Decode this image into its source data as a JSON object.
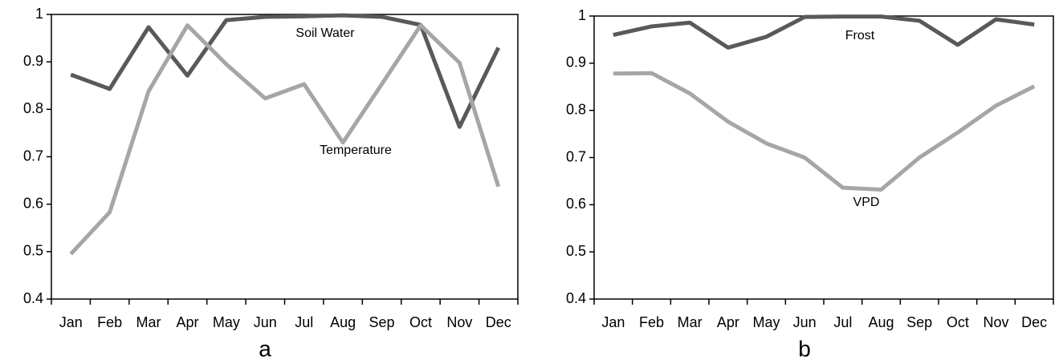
{
  "chart_data": [
    {
      "type": "line",
      "title": "a",
      "categories": [
        "Jan",
        "Feb",
        "Mar",
        "Apr",
        "May",
        "Jun",
        "Jul",
        "Aug",
        "Sep",
        "Oct",
        "Nov",
        "Dec"
      ],
      "series": [
        {
          "name": "Soil Water",
          "color": "#595959",
          "values": [
            0.873,
            0.843,
            0.973,
            0.871,
            0.988,
            0.995,
            0.996,
            0.998,
            0.995,
            0.978,
            0.763,
            0.93
          ]
        },
        {
          "name": "Temperature",
          "color": "#a6a6a6",
          "values": [
            0.495,
            0.583,
            0.838,
            0.977,
            0.895,
            0.823,
            0.853,
            0.73,
            0.853,
            0.977,
            0.898,
            0.637
          ]
        }
      ],
      "ylim": [
        0.4,
        1
      ],
      "yticks": [
        0.4,
        0.5,
        0.6,
        0.7,
        0.8,
        0.9,
        1
      ],
      "grid": false
    },
    {
      "type": "line",
      "title": "b",
      "categories": [
        "Jan",
        "Feb",
        "Mar",
        "Apr",
        "May",
        "Jun",
        "Jul",
        "Aug",
        "Sep",
        "Oct",
        "Nov",
        "Dec"
      ],
      "series": [
        {
          "name": "Frost",
          "color": "#595959",
          "values": [
            0.96,
            0.978,
            0.986,
            0.933,
            0.956,
            0.998,
            0.999,
            0.999,
            0.99,
            0.939,
            0.993,
            0.982
          ]
        },
        {
          "name": "VPD",
          "color": "#a6a6a6",
          "values": [
            0.878,
            0.879,
            0.836,
            0.776,
            0.73,
            0.7,
            0.636,
            0.632,
            0.7,
            0.753,
            0.81,
            0.851
          ]
        }
      ],
      "ylim": [
        0.4,
        1
      ],
      "yticks": [
        0.4,
        0.5,
        0.6,
        0.7,
        0.8,
        0.9,
        1
      ],
      "grid": false
    }
  ]
}
